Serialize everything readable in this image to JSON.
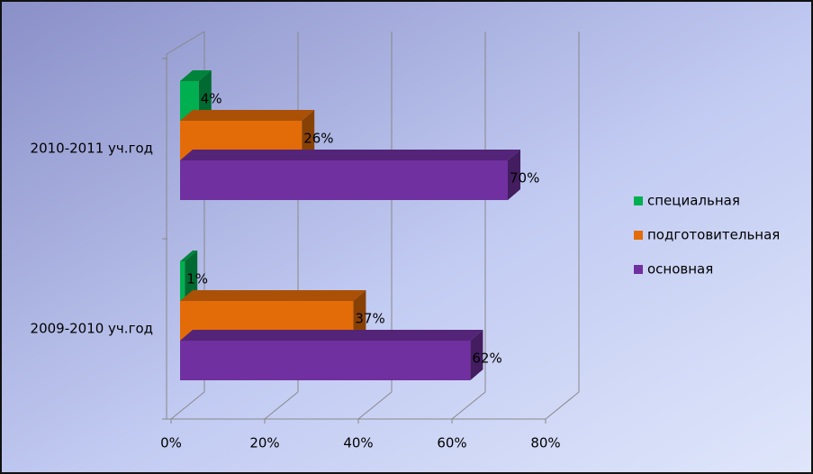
{
  "chart_data": {
    "type": "bar3d_horizontal",
    "categories": [
      "2009-2010 уч.год",
      "2010-2011 уч.год"
    ],
    "series": [
      {
        "name": "специальная",
        "color": "#00b050",
        "values": [
          1,
          4
        ],
        "value_labels": [
          "1%",
          "4%"
        ]
      },
      {
        "name": "подготовительная",
        "color": "#e36c09",
        "values": [
          37,
          26
        ],
        "value_labels": [
          "37%",
          "26%"
        ]
      },
      {
        "name": "основная",
        "color": "#7030a0",
        "values": [
          62,
          70
        ],
        "value_labels": [
          "62%",
          "70%"
        ]
      }
    ],
    "xlim": [
      0,
      80
    ],
    "xticks": [
      {
        "value": 0,
        "label": "0%"
      },
      {
        "value": 20,
        "label": "20%"
      },
      {
        "value": 40,
        "label": "40%"
      },
      {
        "value": 60,
        "label": "60%"
      },
      {
        "value": 80,
        "label": "80%"
      }
    ],
    "grid": true,
    "legend": "right"
  }
}
